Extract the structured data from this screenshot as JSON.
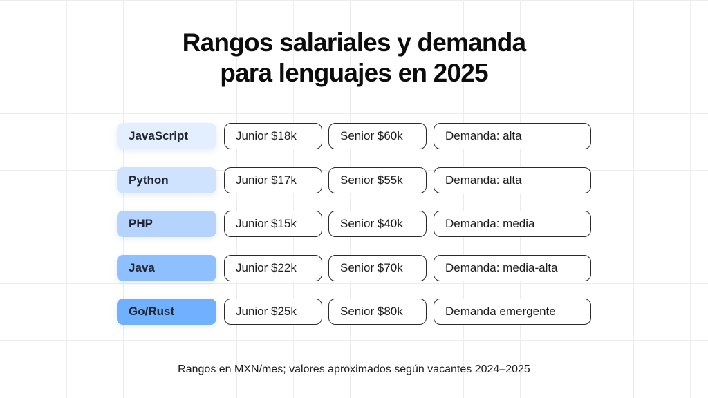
{
  "title": {
    "line1": "Rangos salariales y demanda",
    "line2": "para lenguajes en 2025"
  },
  "rows": [
    {
      "language": "JavaScript",
      "junior": "Junior $18k",
      "senior": "Senior $60k",
      "demand": "Demanda: alta",
      "color": "#e3efff"
    },
    {
      "language": "Python",
      "junior": "Junior $17k",
      "senior": "Senior $55k",
      "demand": "Demanda: alta",
      "color": "#cfe3ff"
    },
    {
      "language": "PHP",
      "junior": "Junior $15k",
      "senior": "Senior $40k",
      "demand": "Demanda: media",
      "color": "#b4d4ff"
    },
    {
      "language": "Java",
      "junior": "Junior $22k",
      "senior": "Senior $70k",
      "demand": "Demanda: media-alta",
      "color": "#8ec0ff"
    },
    {
      "language": "Go/Rust",
      "junior": "Junior $25k",
      "senior": "Senior $80k",
      "demand": "Demanda emergente",
      "color": "#6fb0ff"
    }
  ],
  "footnote": "Rangos en MXN/mes; valores aproximados según vacantes 2024–2025"
}
